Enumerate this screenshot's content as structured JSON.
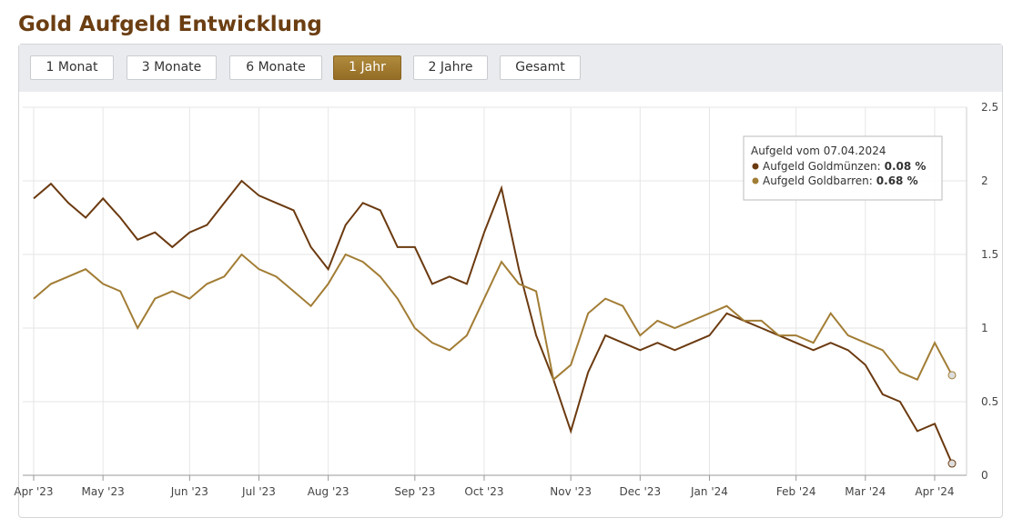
{
  "page": {
    "title": "Gold Aufgeld Entwicklung",
    "buttons": [
      "1 Monat",
      "3 Monate",
      "6 Monate",
      "1 Jahr",
      "2 Jahre",
      "Gesamt"
    ],
    "active_button": 3
  },
  "chart_data": {
    "type": "line",
    "categories": [
      "Apr '23",
      null,
      null,
      null,
      "May '23",
      null,
      null,
      null,
      null,
      "Jun '23",
      null,
      null,
      null,
      "Jul '23",
      null,
      null,
      null,
      "Aug '23",
      null,
      null,
      null,
      null,
      "Sep '23",
      null,
      null,
      null,
      "Oct '23",
      null,
      null,
      null,
      null,
      "Nov '23",
      null,
      null,
      null,
      "Dec '23",
      null,
      null,
      null,
      "Jan '24",
      null,
      null,
      null,
      null,
      "Feb '24",
      null,
      null,
      null,
      "Mar '24",
      null,
      null,
      null,
      "Apr '24",
      null
    ],
    "series": [
      {
        "color": "#6b3a10",
        "values": [
          1.88,
          1.98,
          1.85,
          1.75,
          1.88,
          1.75,
          1.6,
          1.65,
          1.55,
          1.65,
          1.7,
          1.85,
          2.0,
          1.9,
          1.85,
          1.8,
          1.55,
          1.4,
          1.7,
          1.85,
          1.8,
          1.55,
          1.55,
          1.3,
          1.35,
          1.3,
          1.65,
          1.95,
          1.4,
          0.95,
          0.65,
          0.3,
          0.7,
          0.95,
          0.9,
          0.85,
          0.9,
          0.85,
          0.9,
          0.95,
          1.1,
          1.05,
          1.0,
          0.95,
          0.9,
          0.85,
          0.9,
          0.85,
          0.75,
          0.55,
          0.5,
          0.3,
          0.35,
          0.08
        ]
      },
      {
        "color": "#a27d35",
        "values": [
          1.2,
          1.3,
          1.35,
          1.4,
          1.3,
          1.25,
          1.0,
          1.2,
          1.25,
          1.2,
          1.3,
          1.35,
          1.5,
          1.4,
          1.35,
          1.25,
          1.15,
          1.3,
          1.5,
          1.45,
          1.35,
          1.2,
          1.0,
          0.9,
          0.85,
          0.95,
          1.2,
          1.45,
          1.3,
          1.25,
          0.65,
          0.75,
          1.1,
          1.2,
          1.15,
          0.95,
          1.05,
          1.0,
          1.05,
          1.1,
          1.15,
          1.05,
          1.05,
          0.95,
          0.95,
          0.9,
          1.1,
          0.95,
          0.9,
          0.85,
          0.7,
          0.65,
          0.9,
          0.68
        ]
      }
    ],
    "ylim": [
      0,
      2.5
    ],
    "yticks": [
      0,
      0.5,
      1,
      1.5,
      2,
      2.5
    ],
    "grid": true,
    "tooltip": {
      "title": "Aufgeld vom 07.04.2024",
      "rows": [
        {
          "label": "Aufgeld Goldmünzen:",
          "value": "0.08 %"
        },
        {
          "label": "Aufgeld Goldbarren:",
          "value": "0.68 %"
        }
      ]
    }
  }
}
